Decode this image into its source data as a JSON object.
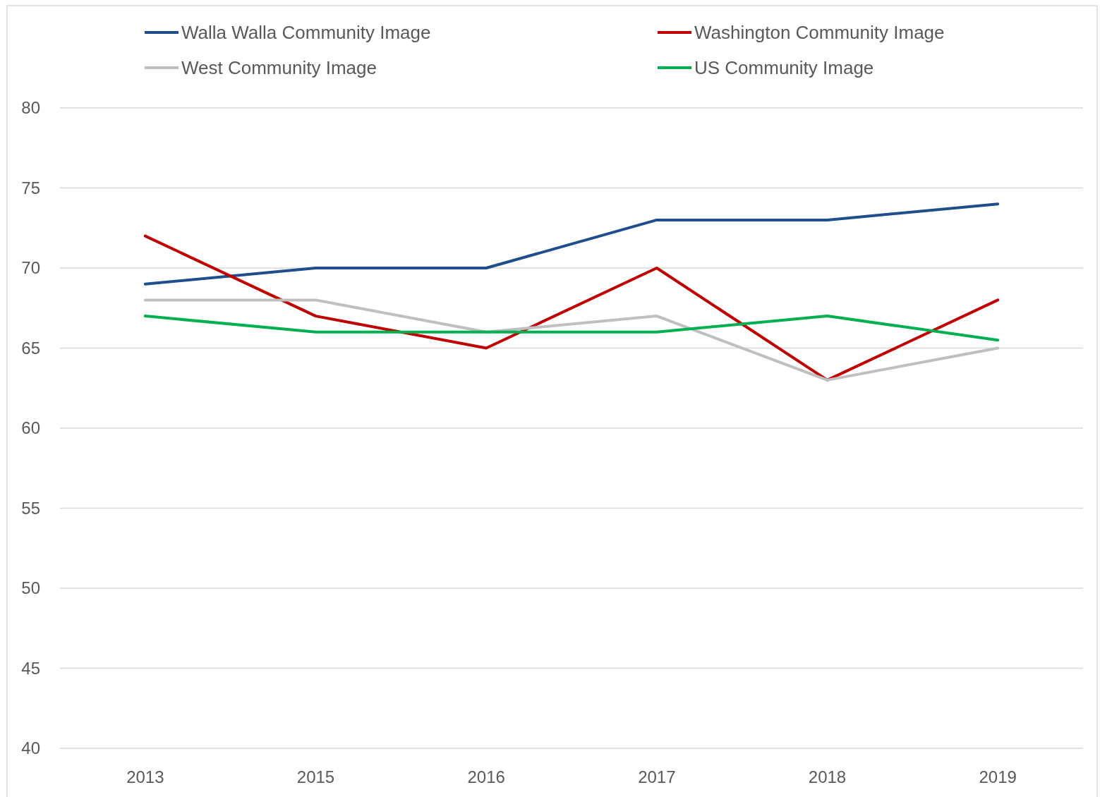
{
  "chart_data": {
    "type": "line",
    "categories": [
      "2013",
      "2015",
      "2016",
      "2017",
      "2018",
      "2019"
    ],
    "series": [
      {
        "name": "Walla Walla Community Image",
        "color": "#1f4e8c",
        "values": [
          69,
          70,
          70,
          73,
          73,
          74
        ]
      },
      {
        "name": "Washington Community Image",
        "color": "#c00000",
        "values": [
          72,
          67,
          65,
          70,
          63,
          68
        ]
      },
      {
        "name": "West Community Image",
        "color": "#bfbfbf",
        "values": [
          68,
          68,
          66,
          67,
          63,
          65
        ]
      },
      {
        "name": "US Community Image",
        "color": "#00b050",
        "values": [
          67,
          66,
          66,
          66,
          67,
          65.5
        ]
      }
    ],
    "ylim": [
      40,
      80
    ],
    "yticks": [
      40,
      45,
      50,
      55,
      60,
      65,
      70,
      75,
      80
    ],
    "grid": "y",
    "legend": "top",
    "marker": "none",
    "line_style": "solid"
  }
}
